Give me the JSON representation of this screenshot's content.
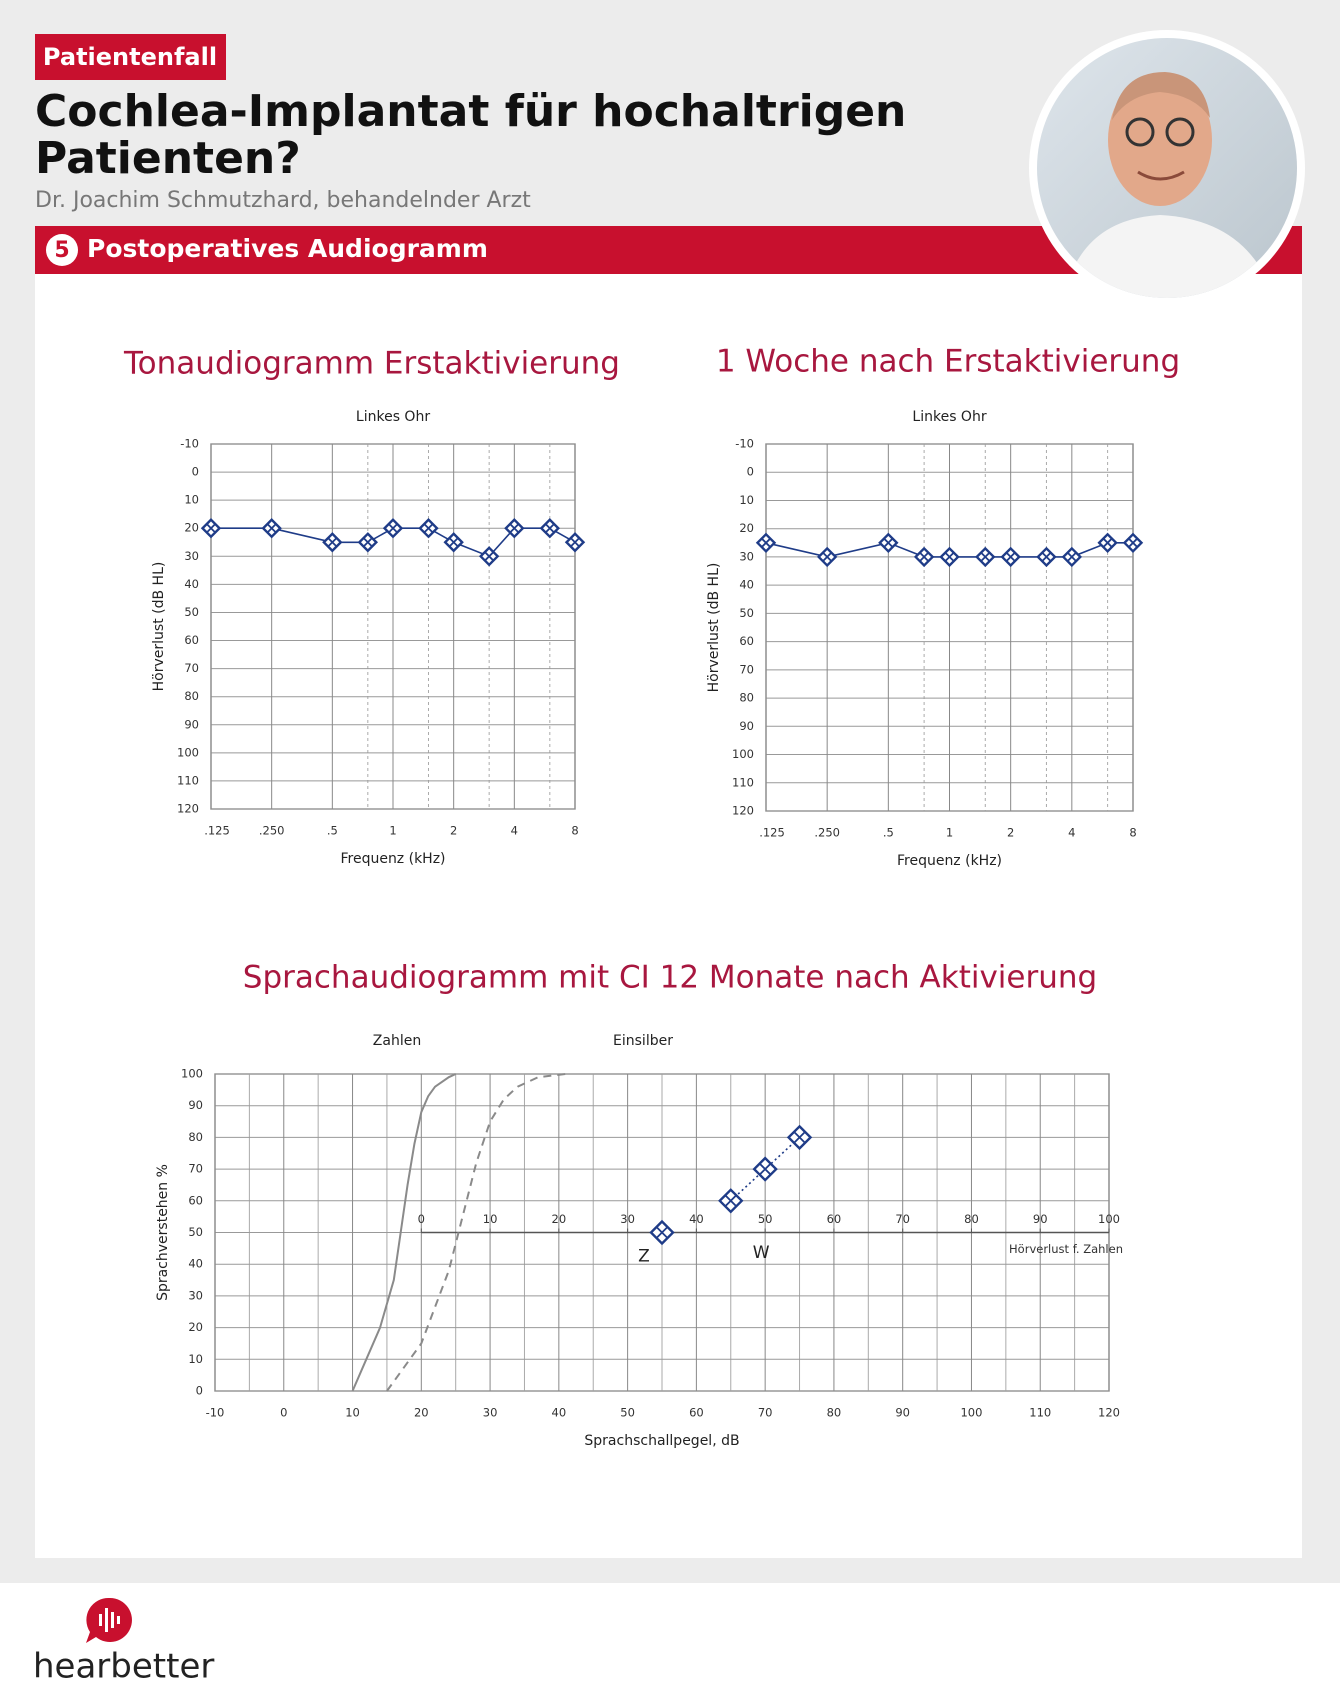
{
  "header": {
    "tag": "Patientenfall",
    "title_lines": [
      "Cochlea-Implantat für hochaltrigen",
      "Patienten?"
    ],
    "author": "Dr. Joachim Schmutzhard, behandelnder Arzt",
    "section_number": "5",
    "section_title": "Postoperatives Audiogramm"
  },
  "footer": {
    "brand": "hearbetter"
  },
  "chart_data": [
    {
      "type": "line",
      "title": "Tonaudiogramm Erstaktivierung",
      "subtitle": "Linkes Ohr",
      "xlabel": "Frequenz (kHz)",
      "ylabel": "Hörverlust (dB HL)",
      "xlog": true,
      "xlim": [
        0.125,
        8
      ],
      "xticks": [
        {
          "value": 0.125,
          "label": ".125"
        },
        {
          "value": 0.25,
          "label": ".250"
        },
        {
          "value": 0.5,
          "label": ".5"
        },
        1,
        2,
        4,
        8
      ],
      "xminor": [
        0.75,
        1.5,
        3,
        6
      ],
      "minor_grid_style": "dashed",
      "ylim": [
        -10,
        120
      ],
      "y_inverted": true,
      "yticks": [
        -10,
        0,
        10,
        20,
        30,
        40,
        50,
        60,
        70,
        80,
        90,
        100,
        110,
        120
      ],
      "grid": true,
      "series": [
        {
          "color": "#1f3c88",
          "marker": "diamond",
          "line": "solid",
          "x": [
            0.125,
            0.25,
            0.5,
            0.75,
            1,
            1.5,
            2,
            3,
            4,
            6,
            8
          ],
          "values": [
            20,
            20,
            25,
            25,
            20,
            20,
            25,
            30,
            20,
            20,
            25
          ]
        }
      ]
    },
    {
      "type": "line",
      "title": "1 Woche nach Erstaktivierung",
      "subtitle": "Linkes Ohr",
      "xlabel": "Frequenz (kHz)",
      "ylabel": "Hörverlust (dB HL)",
      "xlog": true,
      "xlim": [
        0.125,
        8
      ],
      "xticks": [
        {
          "value": 0.125,
          "label": ".125"
        },
        {
          "value": 0.25,
          "label": ".250"
        },
        {
          "value": 0.5,
          "label": ".5"
        },
        1,
        2,
        4,
        8
      ],
      "xminor": [
        0.75,
        1.5,
        3,
        6
      ],
      "minor_grid_style": "dashed",
      "ylim": [
        -10,
        120
      ],
      "y_inverted": true,
      "yticks": [
        -10,
        0,
        10,
        20,
        30,
        40,
        50,
        60,
        70,
        80,
        90,
        100,
        110,
        120
      ],
      "grid": true,
      "series": [
        {
          "color": "#1f3c88",
          "marker": "diamond",
          "line": "solid",
          "x": [
            0.125,
            0.25,
            0.5,
            0.75,
            1,
            1.5,
            2,
            3,
            4,
            6,
            8
          ],
          "values": [
            25,
            30,
            25,
            30,
            30,
            30,
            30,
            30,
            30,
            25,
            25
          ]
        }
      ]
    },
    {
      "type": "line",
      "title": "Sprachaudiogramm mit CI 12 Monate nach Aktivierung",
      "xlabel": "Sprachschallpegel, dB",
      "ylabel": "Sprachverstehen %",
      "xlog": false,
      "xlim": [
        -10,
        120
      ],
      "xticks": [
        -10,
        0,
        10,
        20,
        30,
        40,
        50,
        60,
        70,
        80,
        90,
        100,
        110,
        120
      ],
      "xminor": [
        -5,
        5,
        15,
        25,
        35,
        45,
        55,
        65,
        75,
        85,
        95,
        105,
        115
      ],
      "minor_grid_style": "solid",
      "ylim": [
        0,
        100
      ],
      "y_inverted": false,
      "yticks": [
        0,
        10,
        20,
        30,
        40,
        50,
        60,
        70,
        80,
        90,
        100
      ],
      "grid": true,
      "x2lim": [
        -30,
        100
      ],
      "x2ticks": [
        0,
        10,
        20,
        30,
        40,
        50,
        60,
        70,
        80,
        90,
        100
      ],
      "x2label": "Hörverlust f. Zahlen",
      "x2_position": 50,
      "series": [
        {
          "name": "Zahlen",
          "color": "#8a8a8a",
          "marker": "none",
          "line": "solid",
          "x": [
            10,
            12,
            14,
            16,
            17,
            18,
            19,
            20,
            21,
            22,
            24,
            25
          ],
          "values": [
            0,
            10,
            20,
            35,
            50,
            65,
            78,
            88,
            93,
            96,
            99,
            100
          ]
        },
        {
          "name": "Einsilber",
          "color": "#8a8a8a",
          "marker": "none",
          "line": "dashed",
          "x": [
            15,
            20,
            24,
            26,
            28,
            30,
            32,
            34,
            37,
            41
          ],
          "values": [
            0,
            15,
            38,
            55,
            72,
            85,
            92,
            96,
            99,
            100
          ]
        },
        {
          "name": "Z",
          "color": "#1f3c88",
          "marker": "diamond",
          "line": "none",
          "x": [
            55
          ],
          "values": [
            50
          ]
        },
        {
          "name": "W",
          "color": "#1f3c88",
          "marker": "diamond",
          "line": "dotted",
          "x": [
            65,
            70,
            75
          ],
          "values": [
            60,
            70,
            80
          ]
        }
      ]
    }
  ]
}
